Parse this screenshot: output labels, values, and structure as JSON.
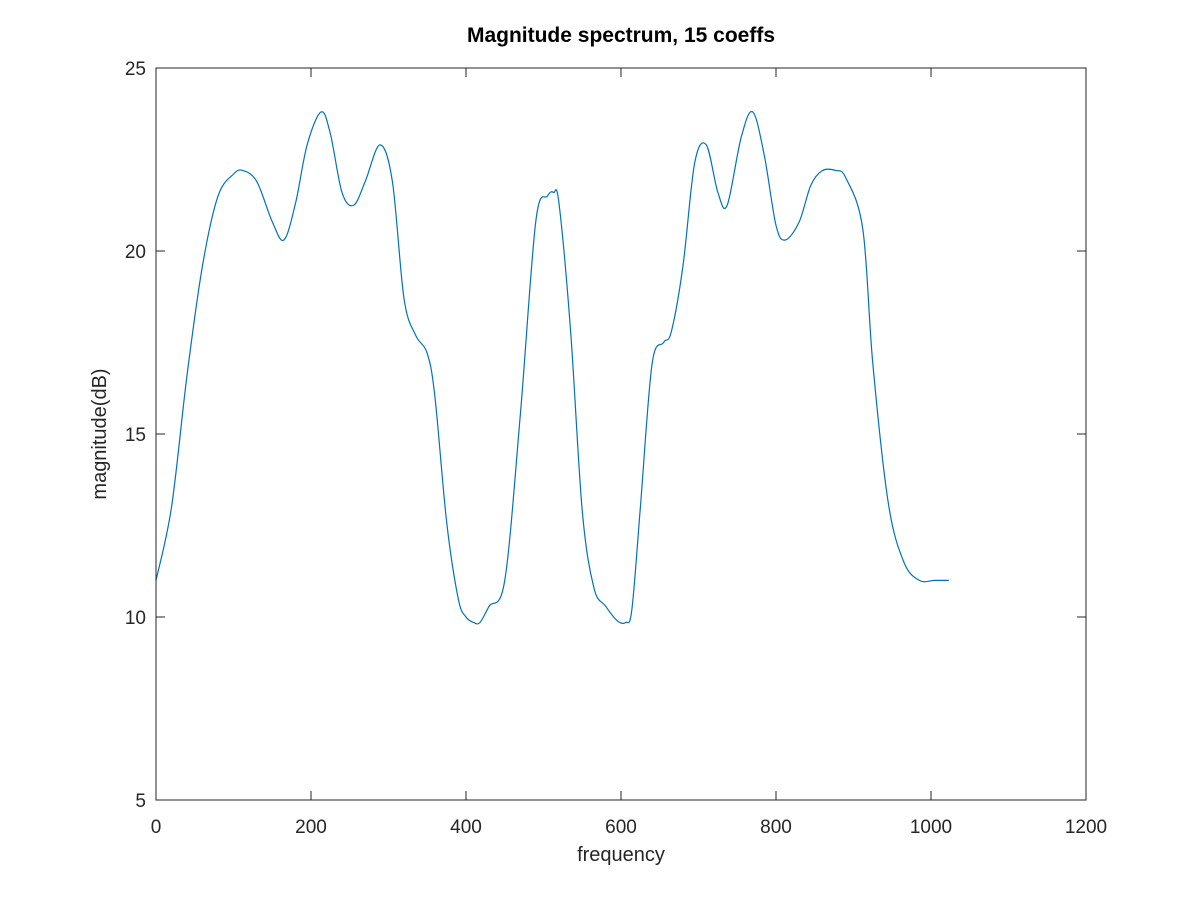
{
  "chart_data": {
    "type": "line",
    "title": "Magnitude spectrum, 15 coeffs",
    "xlabel": "frequency",
    "ylabel": "magnitude(dB)",
    "xlim": [
      0,
      1200
    ],
    "ylim": [
      5,
      25
    ],
    "xticks": [
      0,
      200,
      400,
      600,
      800,
      1000,
      1200
    ],
    "yticks": [
      5,
      10,
      15,
      20,
      25
    ],
    "xtick_labels": [
      "0",
      "200",
      "400",
      "600",
      "800",
      "1000",
      "1200"
    ],
    "ytick_labels": [
      "5",
      "10",
      "15",
      "20",
      "25"
    ],
    "grid": false,
    "series": [
      {
        "color": "#0072bd",
        "x": [
          0,
          20,
          40,
          60,
          80,
          100,
          112,
          130,
          150,
          165,
          180,
          195,
          213,
          225,
          240,
          255,
          270,
          289,
          305,
          320,
          335,
          350,
          360,
          375,
          390,
          400,
          410,
          418,
          430,
          450,
          470,
          490,
          505,
          513,
          520,
          535,
          550,
          565,
          580,
          595,
          606,
          614,
          625,
          640,
          655,
          665,
          680,
          695,
          710,
          725,
          737,
          755,
          770,
          785,
          800,
          812,
          830,
          845,
          860,
          877,
          890,
          912,
          925,
          945,
          965,
          985,
          1005,
          1023
        ],
        "y": [
          11.0,
          13.0,
          16.6,
          19.6,
          21.5,
          22.1,
          22.2,
          21.9,
          20.8,
          20.3,
          21.3,
          22.9,
          23.8,
          23.2,
          21.6,
          21.25,
          21.9,
          22.9,
          21.9,
          18.7,
          17.7,
          17.2,
          16.0,
          12.6,
          10.5,
          10.0,
          9.85,
          9.85,
          10.3,
          11.0,
          15.5,
          20.8,
          21.5,
          21.6,
          21.3,
          17.8,
          12.9,
          10.8,
          10.3,
          9.9,
          9.85,
          10.2,
          13.0,
          16.9,
          17.5,
          17.8,
          19.6,
          22.4,
          22.9,
          21.6,
          21.25,
          23.1,
          23.8,
          22.6,
          20.7,
          20.3,
          20.8,
          21.8,
          22.2,
          22.2,
          22.0,
          20.6,
          16.9,
          13.1,
          11.5,
          11.0,
          11.0,
          11.0
        ]
      }
    ]
  }
}
